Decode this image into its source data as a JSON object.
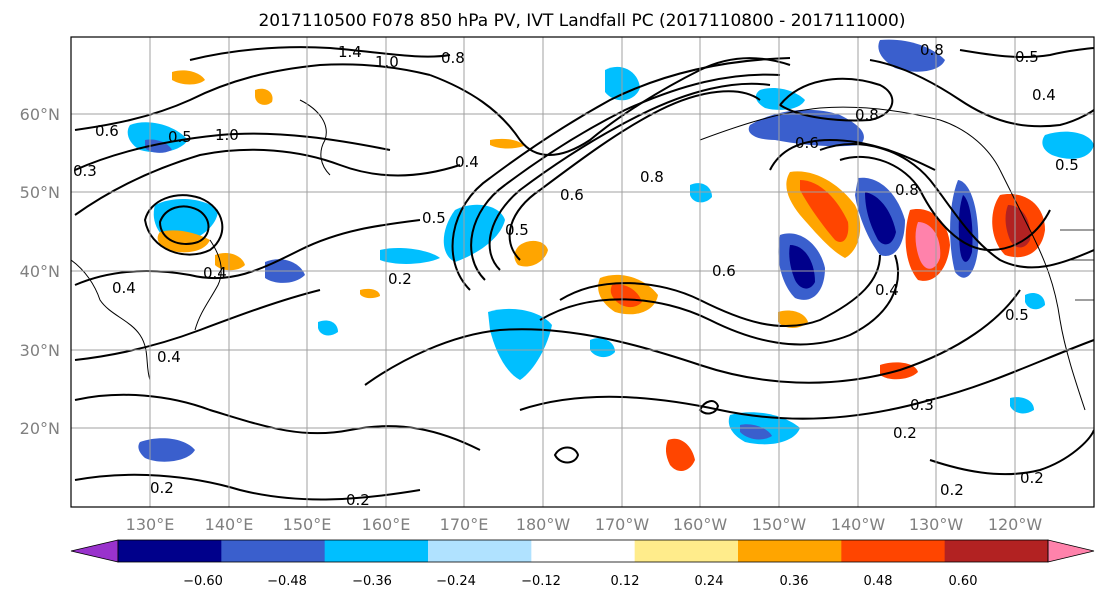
{
  "title": "2017110500 F078 850 hPa PV, IVT Landfall PC (2017110800 - 2017111000)",
  "map": {
    "lat_labels": [
      "60°N",
      "50°N",
      "40°N",
      "30°N",
      "20°N"
    ],
    "lon_labels": [
      "130°E",
      "140°E",
      "150°E",
      "160°E",
      "170°E",
      "180°W",
      "170°W",
      "160°W",
      "150°W",
      "140°W",
      "130°W",
      "120°W"
    ],
    "contour_labels": [
      "0.6",
      "0.5",
      "0.3",
      "0.4",
      "0.4",
      "0.4",
      "0.2",
      "0.2",
      "0.2",
      "0.5",
      "0.5",
      "0.6",
      "0.8",
      "1.0",
      "1.4",
      "0.8",
      "0.4",
      "0.6",
      "0.8",
      "0.4",
      "0.3",
      "0.2",
      "0.2",
      "0.2",
      "0.5",
      "0.5",
      "0.4",
      "0.5",
      "0.6",
      "0.8",
      "1.0",
      "0.8"
    ]
  },
  "colorbar": {
    "ticks": [
      "−0.60",
      "−0.48",
      "−0.36",
      "−0.24",
      "−0.12",
      "0.12",
      "0.24",
      "0.36",
      "0.48",
      "0.60"
    ],
    "colors": [
      "#9932cc",
      "#00008b",
      "#3a5fcd",
      "#00bfff",
      "#b0e2ff",
      "#ffffff",
      "#ffec8b",
      "#ffa500",
      "#ff4500",
      "#b22222",
      "#ff82ab"
    ]
  }
}
